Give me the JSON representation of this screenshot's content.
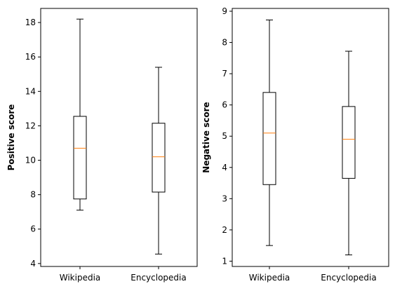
{
  "colors": {
    "box": "#000000",
    "median": "#ff7f0e",
    "axes": "#000000",
    "background": "#ffffff"
  },
  "chart_data": [
    {
      "type": "box",
      "categories": [
        "Wikipedia",
        "Encyclopedia"
      ],
      "ylabel": "Positive score",
      "ylim": [
        3.83,
        18.82
      ],
      "yticks": [
        4,
        6,
        8,
        10,
        12,
        14,
        16,
        18
      ],
      "boxes": [
        {
          "category": "Wikipedia",
          "whisker_low": 7.1,
          "q1": 7.75,
          "median": 10.7,
          "q3": 12.55,
          "whisker_high": 18.2
        },
        {
          "category": "Encyclopedia",
          "whisker_low": 4.55,
          "q1": 8.15,
          "median": 10.2,
          "q3": 12.15,
          "whisker_high": 15.4
        }
      ]
    },
    {
      "type": "box",
      "categories": [
        "Wikipedia",
        "Encyclopedia"
      ],
      "ylabel": "Negative score",
      "ylim": [
        0.83,
        9.09
      ],
      "yticks": [
        1,
        2,
        3,
        4,
        5,
        6,
        7,
        8,
        9
      ],
      "boxes": [
        {
          "category": "Wikipedia",
          "whisker_low": 1.5,
          "q1": 3.45,
          "median": 5.1,
          "q3": 6.4,
          "whisker_high": 8.72
        },
        {
          "category": "Encyclopedia",
          "whisker_low": 1.2,
          "q1": 3.65,
          "median": 4.9,
          "q3": 5.95,
          "whisker_high": 7.72
        }
      ]
    }
  ]
}
